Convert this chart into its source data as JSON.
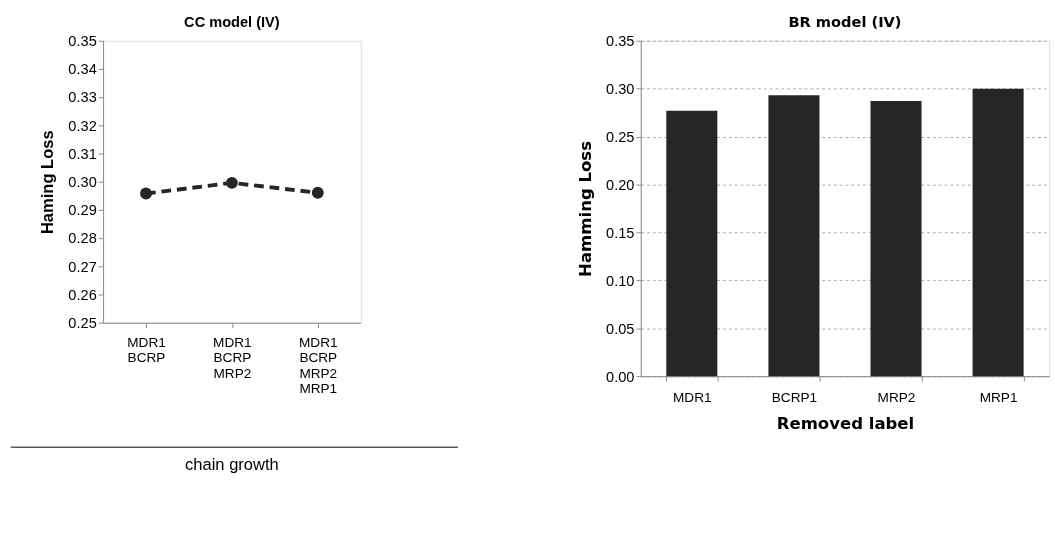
{
  "chart_data": [
    {
      "type": "line",
      "title": "CC model (IV)",
      "xlabel": "chain growth",
      "ylabel": "Haming Loss",
      "categories": [
        "MDR1\nBCRP",
        "MDR1\nBCRP\nMRP2",
        "MDR1\nBCRP\nMRP2\nMRP1"
      ],
      "series": [
        {
          "color": "#262626",
          "values": [
            0.2958,
            0.2996,
            0.2961
          ]
        }
      ],
      "ylim": [
        0.25,
        0.35
      ],
      "yticks": [
        0.25,
        0.26,
        0.27,
        0.28,
        0.29,
        {
          "value": 0.3,
          "label": "0.30"
        },
        0.31,
        0.32,
        0.33,
        0.34,
        0.35
      ],
      "marker": "circle",
      "line_style": "dashed",
      "grid": false,
      "legend": false
    },
    {
      "type": "bar",
      "title": "BR model (IV)",
      "xlabel": "Removed label",
      "ylabel": "Hamming Loss",
      "categories": [
        "MDR1",
        "BCRP1",
        "MRP2",
        "MRP1"
      ],
      "series": [
        {
          "color": "#262626",
          "values": [
            0.277,
            0.293,
            0.287,
            0.3
          ]
        }
      ],
      "ylim": [
        0,
        0.35
      ],
      "yticks": [
        {
          "value": 0,
          "label": "0.00"
        },
        0.05,
        {
          "value": 0.1,
          "label": "0.10"
        },
        0.15,
        {
          "value": 0.2,
          "label": "0.20"
        },
        0.25,
        {
          "value": 0.3,
          "label": "0.30"
        },
        0.35
      ],
      "grid": "y",
      "legend": false
    }
  ]
}
